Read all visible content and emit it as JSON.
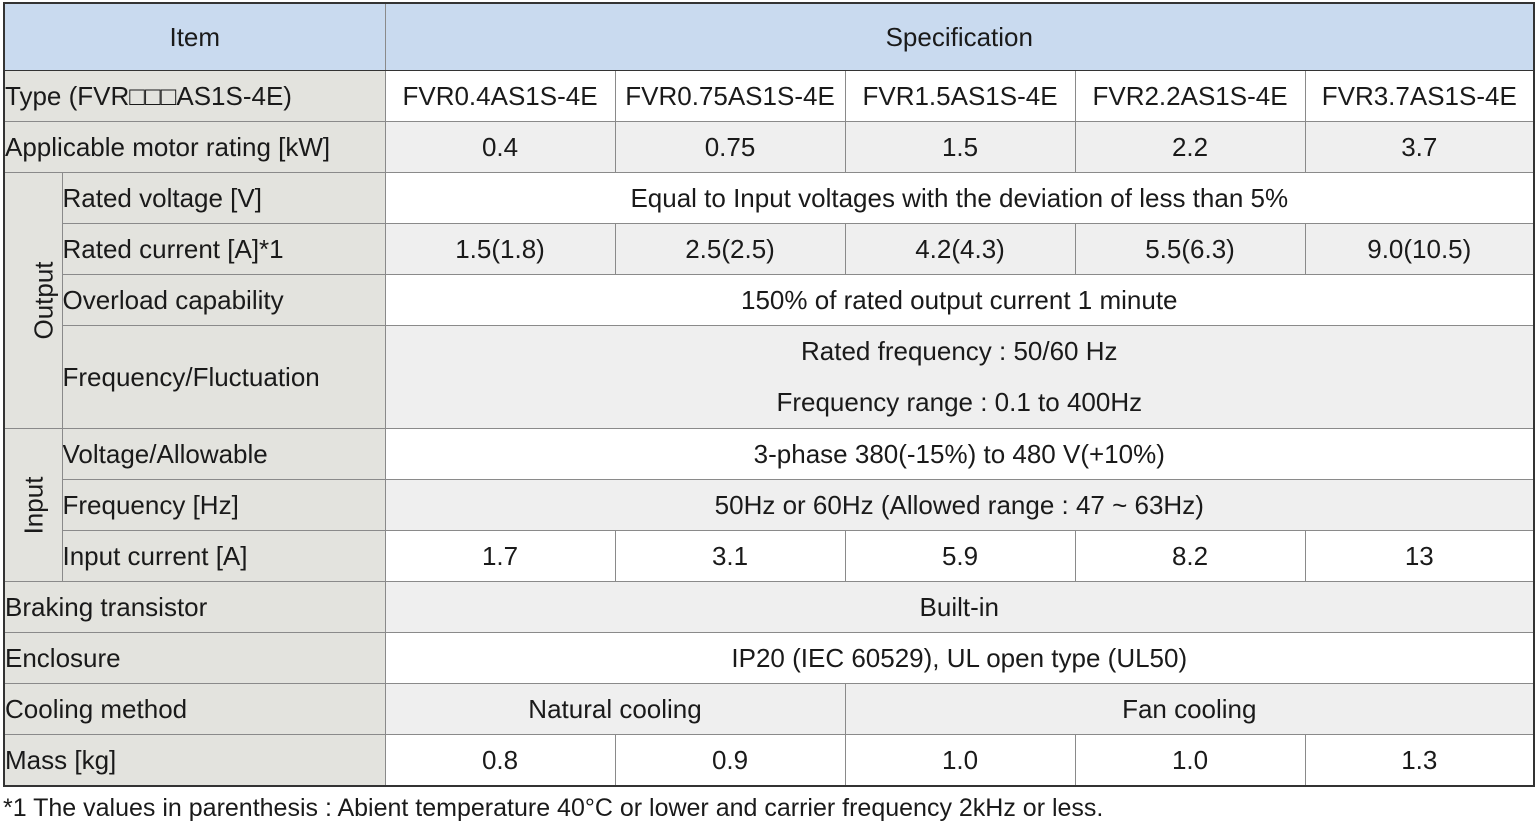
{
  "header": {
    "item": "Item",
    "specification": "Specification"
  },
  "rows": {
    "type": {
      "label": "Type (FVR□□□AS1S-4E)",
      "values": [
        "FVR0.4AS1S-4E",
        "FVR0.75AS1S-4E",
        "FVR1.5AS1S-4E",
        "FVR2.2AS1S-4E",
        "FVR3.7AS1S-4E"
      ]
    },
    "motor_rating": {
      "label": "Applicable motor rating [kW]",
      "values": [
        "0.4",
        "0.75",
        "1.5",
        "2.2",
        "3.7"
      ]
    },
    "output": {
      "group_label": "Output",
      "rated_voltage": {
        "label": "Rated voltage [V]",
        "value": "Equal to Input voltages with the deviation of less than 5%"
      },
      "rated_current": {
        "label": "Rated current [A]*1",
        "values": [
          "1.5(1.8)",
          "2.5(2.5)",
          "4.2(4.3)",
          "5.5(6.3)",
          "9.0(10.5)"
        ]
      },
      "overload": {
        "label": "Overload capability",
        "value": "150% of rated output current  1 minute"
      },
      "frequency": {
        "label": "Frequency/Fluctuation",
        "line1": "Rated frequency : 50/60 Hz",
        "line2": "Frequency range : 0.1 to 400Hz"
      }
    },
    "input": {
      "group_label": "Input",
      "voltage": {
        "label": "Voltage/Allowable",
        "value": "3-phase 380(-15%) to 480 V(+10%)"
      },
      "frequency": {
        "label": "Frequency [Hz]",
        "value": "50Hz or 60Hz (Allowed range : 47 ~ 63Hz)"
      },
      "current": {
        "label": "Input current [A]",
        "values": [
          "1.7",
          "3.1",
          "5.9",
          "8.2",
          "13"
        ]
      }
    },
    "braking": {
      "label": "Braking transistor",
      "value": "Built-in"
    },
    "enclosure": {
      "label": "Enclosure",
      "value": "IP20 (IEC 60529), UL open type (UL50)"
    },
    "cooling": {
      "label": "Cooling method",
      "natural": "Natural cooling",
      "fan": "Fan cooling"
    },
    "mass": {
      "label": "Mass [kg]",
      "values": [
        "0.8",
        "0.9",
        "1.0",
        "1.0",
        "1.3"
      ]
    }
  },
  "footnote": "*1 The values in parenthesis : Abient temperature 40°C or lower and carrier frequency 2kHz or less.",
  "colors": {
    "header_bg": "#c9daef",
    "label_bg": "#e3e3de",
    "alt_row_bg": "#efefef"
  }
}
